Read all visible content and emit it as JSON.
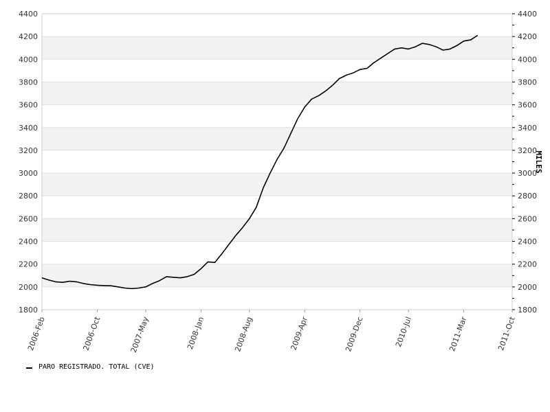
{
  "chart_data": {
    "type": "line",
    "title": "",
    "xlabel": "",
    "ylabel": "MILES",
    "ylim": [
      1800,
      4400
    ],
    "yticks": [
      1800,
      2000,
      2200,
      2400,
      2600,
      2800,
      3000,
      3200,
      3400,
      3600,
      3800,
      4000,
      4200,
      4400
    ],
    "xticks": [
      "2006-Feb",
      "2006-Oct",
      "2007-May",
      "2008-Jan",
      "2008-Aug",
      "2009-Apr",
      "2009-Dec",
      "2010-Jul",
      "2011-Mar",
      "2011-Oct"
    ],
    "x_range": [
      "2006-02",
      "2011-10"
    ],
    "grid": "alternating horizontal bands",
    "legend_position": "bottom-left",
    "series": [
      {
        "name": "PARO REGISTRADO. TOTAL (CVE)",
        "color": "#000000",
        "x": [
          "2006-02",
          "2006-03",
          "2006-04",
          "2006-05",
          "2006-06",
          "2006-07",
          "2006-08",
          "2006-09",
          "2006-10",
          "2006-11",
          "2006-12",
          "2007-01",
          "2007-02",
          "2007-03",
          "2007-04",
          "2007-05",
          "2007-06",
          "2007-07",
          "2007-08",
          "2007-09",
          "2007-10",
          "2007-11",
          "2007-12",
          "2008-01",
          "2008-02",
          "2008-03",
          "2008-04",
          "2008-05",
          "2008-06",
          "2008-07",
          "2008-08",
          "2008-09",
          "2008-10",
          "2008-11",
          "2008-12",
          "2009-01",
          "2009-02",
          "2009-03",
          "2009-04",
          "2009-05",
          "2009-06",
          "2009-07",
          "2009-08",
          "2009-09",
          "2009-10",
          "2009-11",
          "2009-12",
          "2010-01",
          "2010-02",
          "2010-03",
          "2010-04",
          "2010-05",
          "2010-06",
          "2010-07",
          "2010-08",
          "2010-09",
          "2010-10",
          "2010-11",
          "2010-12",
          "2011-01",
          "2011-02",
          "2011-03",
          "2011-04",
          "2011-05"
        ],
        "values": [
          2080,
          2060,
          2045,
          2040,
          2050,
          2045,
          2030,
          2020,
          2015,
          2012,
          2010,
          2000,
          1990,
          1985,
          1990,
          2000,
          2030,
          2055,
          2090,
          2085,
          2080,
          2090,
          2110,
          2160,
          2220,
          2215,
          2290,
          2370,
          2450,
          2520,
          2600,
          2700,
          2870,
          3000,
          3120,
          3220,
          3350,
          3480,
          3580,
          3650,
          3680,
          3720,
          3770,
          3830,
          3860,
          3880,
          3910,
          3920,
          3970,
          4010,
          4050,
          4090,
          4100,
          4090,
          4110,
          4140,
          4130,
          4110,
          4080,
          4090,
          4120,
          4160,
          4170,
          4210
        ]
      }
    ]
  }
}
